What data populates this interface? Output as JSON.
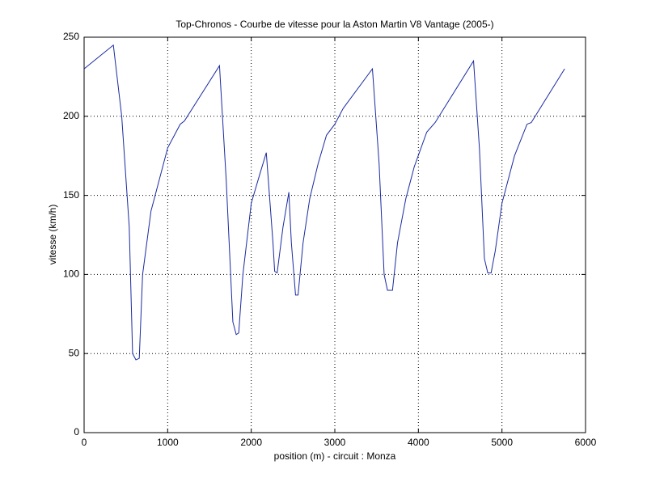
{
  "chart_data": {
    "type": "line",
    "title": "Top-Chronos - Courbe de vitesse pour la Aston Martin V8 Vantage (2005-)",
    "x_label": "position (m) - circuit : Monza",
    "y_label": "vitesse (km/h)",
    "x": [
      0,
      350,
      450,
      540,
      580,
      620,
      660,
      700,
      800,
      850,
      1000,
      1150,
      1200,
      1620,
      1700,
      1780,
      1820,
      1850,
      1900,
      2000,
      2100,
      2180,
      2260,
      2280,
      2310,
      2380,
      2450,
      2480,
      2530,
      2560,
      2620,
      2700,
      2800,
      2900,
      3000,
      3100,
      3450,
      3530,
      3590,
      3630,
      3690,
      3750,
      3850,
      3950,
      4100,
      4200,
      4660,
      4730,
      4790,
      4830,
      4870,
      4920,
      5000,
      5150,
      5300,
      5350,
      5750
    ],
    "series": [
      {
        "name": "vitesse",
        "color": "#1a2aa0",
        "values": [
          230,
          245,
          200,
          130,
          50,
          46,
          47,
          100,
          140,
          150,
          180,
          195,
          197,
          232,
          160,
          70,
          62,
          63,
          100,
          145,
          163,
          177,
          120,
          102,
          101,
          130,
          152,
          120,
          87,
          87,
          120,
          148,
          170,
          188,
          195,
          205,
          230,
          170,
          100,
          90,
          90,
          120,
          148,
          168,
          190,
          196,
          235,
          180,
          110,
          101,
          101,
          115,
          145,
          175,
          195,
          196,
          230
        ]
      }
    ],
    "xlim": [
      0,
      6000
    ],
    "xticks": [
      0,
      1000,
      2000,
      3000,
      4000,
      5000,
      6000
    ],
    "ylim": [
      0,
      250
    ],
    "yticks": [
      0,
      50,
      100,
      150,
      200,
      250
    ],
    "grid": true
  }
}
